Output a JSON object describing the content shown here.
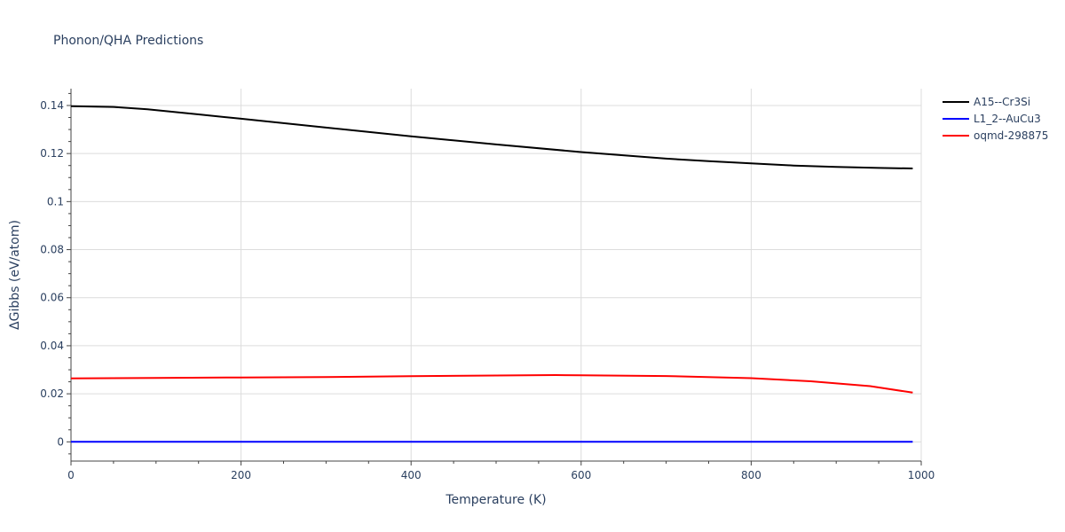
{
  "chart_data": {
    "type": "line",
    "title": "Phonon/QHA Predictions",
    "xlabel": "Temperature (K)",
    "ylabel": "ΔGibbs (eV/atom)",
    "xlim": [
      0,
      1000
    ],
    "ylim": [
      -0.008,
      0.147
    ],
    "xticks": [
      0,
      200,
      400,
      600,
      800,
      1000
    ],
    "xtick_labels": [
      "0",
      "200",
      "400",
      "600",
      "800",
      "1000"
    ],
    "yticks": [
      0,
      0.02,
      0.04,
      0.06,
      0.08,
      0.1,
      0.12,
      0.14
    ],
    "ytick_labels": [
      "0",
      "0.02",
      "0.04",
      "0.06",
      "0.08",
      "0.1",
      "0.12",
      "0.14"
    ],
    "grid": true,
    "legend_position": "top-right",
    "series": [
      {
        "name": "A15--Cr3Si",
        "color": "#000000",
        "x": [
          0,
          50,
          90,
          150,
          200,
          300,
          400,
          500,
          600,
          700,
          750,
          800,
          850,
          900,
          950,
          990
        ],
        "y": [
          0.1397,
          0.1394,
          0.1384,
          0.1363,
          0.1345,
          0.1308,
          0.1272,
          0.1238,
          0.1206,
          0.1179,
          0.1168,
          0.1159,
          0.115,
          0.1144,
          0.114,
          0.1138
        ]
      },
      {
        "name": "L1_2--AuCu3",
        "color": "#0000ff",
        "x": [
          0,
          990
        ],
        "y": [
          0,
          0
        ]
      },
      {
        "name": "oqmd-298875",
        "color": "#ff0000",
        "x": [
          0,
          100,
          200,
          300,
          400,
          500,
          570,
          600,
          700,
          800,
          870,
          940,
          990
        ],
        "y": [
          0.0264,
          0.0266,
          0.0268,
          0.027,
          0.0273,
          0.0276,
          0.0278,
          0.0277,
          0.0274,
          0.0265,
          0.0252,
          0.0232,
          0.0205
        ]
      }
    ]
  }
}
